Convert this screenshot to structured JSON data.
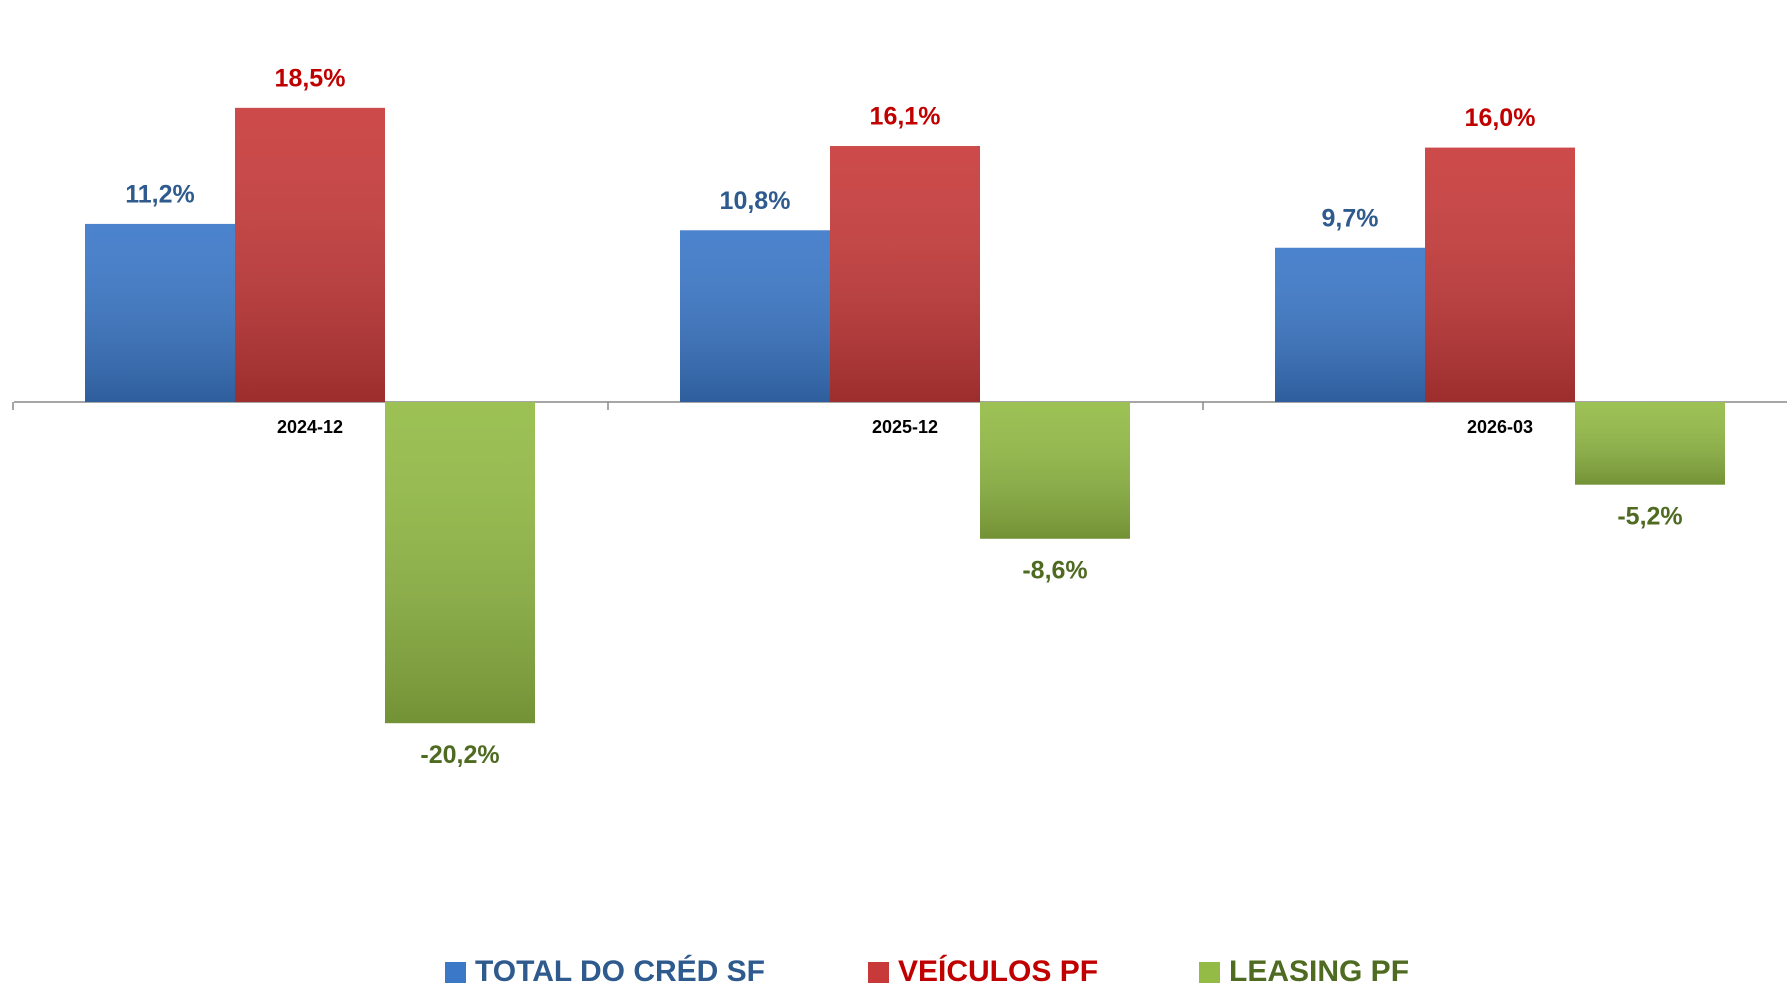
{
  "chart_data": {
    "type": "bar",
    "categories": [
      "2024-12",
      "2025-12",
      "2026-03"
    ],
    "series": [
      {
        "name": "TOTAL DO CRÉD SF",
        "color": "#3b78c8",
        "label_color": "#2e5a8e",
        "values": [
          11.2,
          10.8,
          9.7
        ],
        "value_labels": [
          "11,2%",
          "10,8%",
          "9,7%"
        ]
      },
      {
        "name": "VEÍCULOS PF",
        "color": "#c83a3a",
        "label_color": "#c00000",
        "values": [
          18.5,
          16.1,
          16.0
        ],
        "value_labels": [
          "18,5%",
          "16,1%",
          "16,0%"
        ]
      },
      {
        "name": "LEASING PF",
        "color": "#93bb45",
        "label_color": "#4f6b22",
        "values": [
          -20.2,
          -8.6,
          -5.2
        ],
        "value_labels": [
          "-20,2%",
          "-8,6%",
          "-5,2%"
        ]
      }
    ],
    "legend": "bottom"
  }
}
